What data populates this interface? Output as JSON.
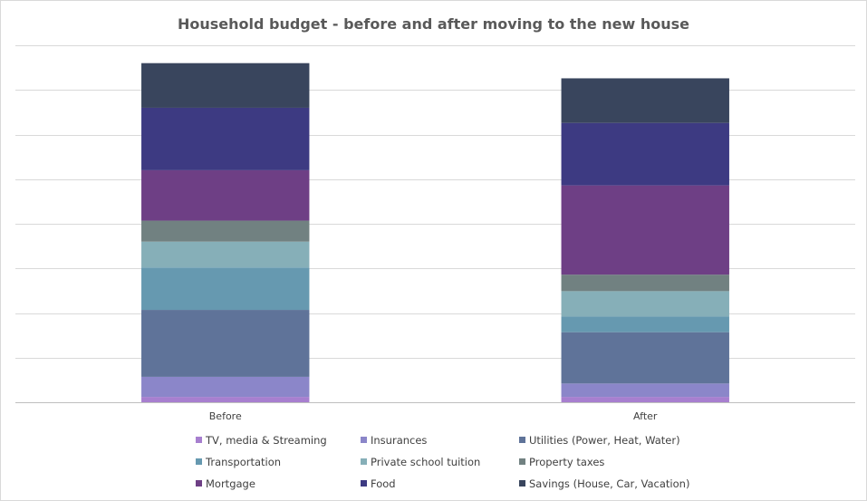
{
  "chart_data": {
    "type": "bar",
    "stacked": true,
    "title": "Household budget - before and after moving to the new house",
    "categories": [
      "Before",
      "After"
    ],
    "ylim": [
      0,
      800
    ],
    "grid": true,
    "legend_position": "bottom",
    "series": [
      {
        "name": "TV, media & Streaming",
        "color": "#a77fcf",
        "values": [
          12,
          12
        ]
      },
      {
        "name": "Insurances",
        "color": "#8b86c9",
        "values": [
          45,
          30
        ]
      },
      {
        "name": "Utilities (Power, Heat, Water)",
        "color": "#5f7399",
        "values": [
          150,
          115
        ]
      },
      {
        "name": "Transportation",
        "color": "#6699b0",
        "values": [
          95,
          35
        ]
      },
      {
        "name": "Private school tuition",
        "color": "#86afb8",
        "values": [
          58,
          57
        ]
      },
      {
        "name": "Property taxes",
        "color": "#718181",
        "values": [
          47,
          37
        ]
      },
      {
        "name": "Mortgage",
        "color": "#6e3f85",
        "values": [
          113,
          200
        ]
      },
      {
        "name": "Food",
        "color": "#3d3a82",
        "values": [
          140,
          140
        ]
      },
      {
        "name": "Savings (House, Car, Vacation)",
        "color": "#39455d",
        "values": [
          100,
          100
        ]
      }
    ]
  }
}
